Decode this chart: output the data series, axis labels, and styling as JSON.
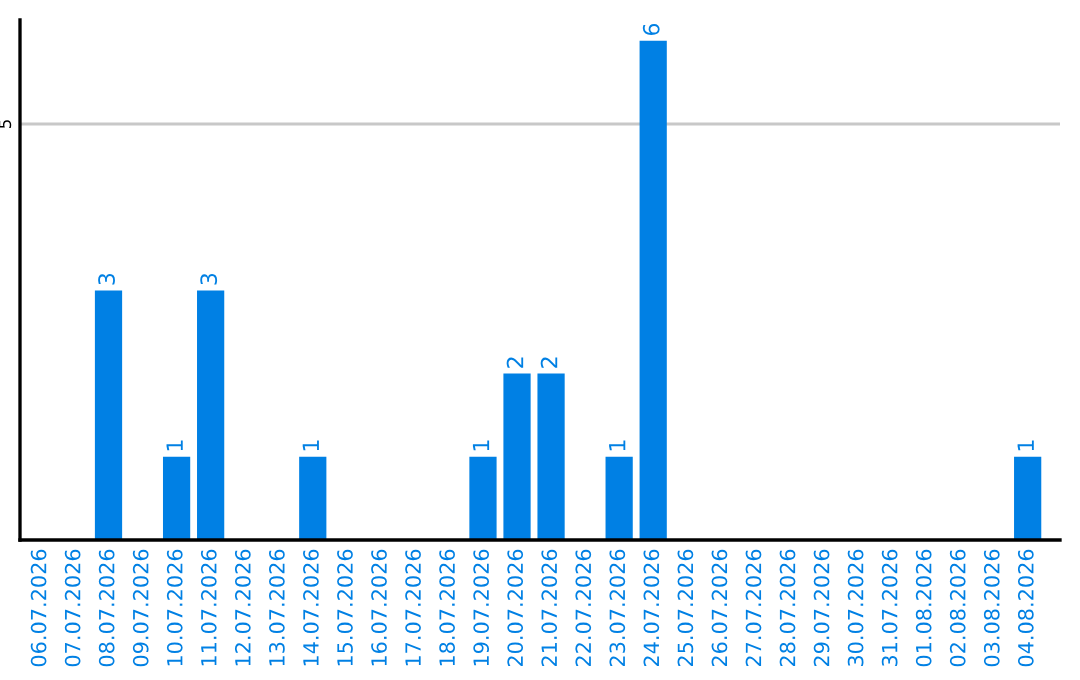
{
  "chart_data": {
    "type": "bar",
    "categories": [
      "06.07.2026",
      "07.07.2026",
      "08.07.2026",
      "09.07.2026",
      "10.07.2026",
      "11.07.2026",
      "12.07.2026",
      "13.07.2026",
      "14.07.2026",
      "15.07.2026",
      "16.07.2026",
      "17.07.2026",
      "18.07.2026",
      "19.07.2026",
      "20.07.2026",
      "21.07.2026",
      "22.07.2026",
      "23.07.2026",
      "24.07.2026",
      "25.07.2026",
      "26.07.2026",
      "27.07.2026",
      "28.07.2026",
      "29.07.2026",
      "30.07.2026",
      "31.07.2026",
      "01.08.2026",
      "02.08.2026",
      "03.08.2026",
      "04.08.2026"
    ],
    "values": [
      null,
      null,
      3,
      null,
      1,
      3,
      null,
      null,
      1,
      null,
      null,
      null,
      null,
      1,
      2,
      2,
      null,
      1,
      6,
      null,
      null,
      null,
      null,
      null,
      null,
      null,
      null,
      null,
      null,
      1
    ],
    "color": "#0080e4",
    "ylim": [
      0,
      6.25
    ],
    "yticks": [
      5
    ],
    "grid": "y",
    "data_labels": true
  }
}
